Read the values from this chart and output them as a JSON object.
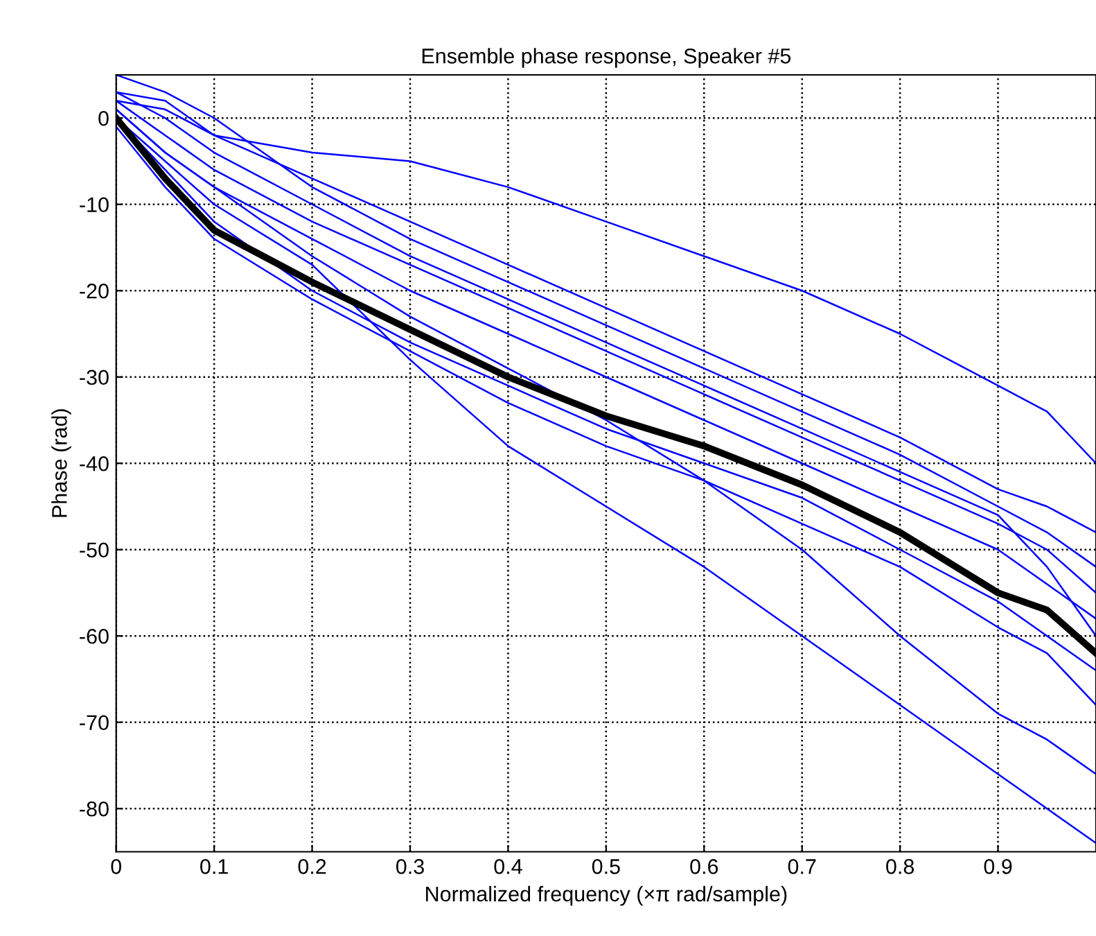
{
  "chart_data": {
    "type": "line",
    "title": "Ensemble phase response, Speaker #5",
    "xlabel": "Normalized frequency (×π rad/sample)",
    "ylabel": "Phase (rad)",
    "x": [
      0,
      0.05,
      0.1,
      0.2,
      0.3,
      0.4,
      0.5,
      0.6,
      0.7,
      0.8,
      0.9,
      0.95,
      1
    ],
    "series": [
      {
        "color": "#0000ff",
        "values": [
          3,
          2,
          -2,
          -7,
          -12,
          -17,
          -22,
          -27,
          -32,
          -37,
          -43,
          -45,
          -48
        ]
      },
      {
        "color": "#0000ff",
        "values": [
          2,
          1,
          -2,
          -4,
          -5,
          -8,
          -12,
          -16,
          -20,
          -25,
          -31,
          -34,
          -40
        ]
      },
      {
        "color": "#0000ff",
        "values": [
          5,
          3,
          0,
          -8,
          -14,
          -19,
          -24,
          -29,
          -34,
          -39,
          -45,
          -48,
          -52
        ]
      },
      {
        "color": "#0000ff",
        "values": [
          2,
          -2,
          -6,
          -12,
          -17,
          -22,
          -27,
          -32,
          -37,
          -42,
          -47,
          -50,
          -55
        ]
      },
      {
        "color": "#0000ff",
        "values": [
          1,
          -4,
          -8,
          -14,
          -20,
          -25,
          -30,
          -35,
          -40,
          -45,
          -50,
          -54,
          -58
        ]
      },
      {
        "color": "#0000ff",
        "values": [
          -1,
          -8,
          -14,
          -21,
          -27,
          -33,
          -38,
          -42,
          -47,
          -52,
          -59,
          -62,
          -68
        ]
      },
      {
        "color": "#0000ff",
        "values": [
          0,
          -6,
          -12,
          -20,
          -26,
          -31,
          -36,
          -40,
          -44,
          -50,
          -56,
          -60,
          -64
        ]
      },
      {
        "color": "#0000ff",
        "values": [
          0,
          -5,
          -10,
          -17,
          -28,
          -38,
          -45,
          -52,
          -60,
          -68,
          -76,
          -80,
          -84
        ]
      },
      {
        "color": "#0000ff",
        "values": [
          1,
          -4,
          -8,
          -16,
          -23,
          -29,
          -35,
          -42,
          -50,
          -60,
          -69,
          -72,
          -76
        ]
      },
      {
        "color": "#0000ff",
        "values": [
          3,
          0,
          -4,
          -10,
          -16,
          -21,
          -26,
          -31,
          -36,
          -41,
          -46,
          -52,
          -60
        ]
      },
      {
        "color": "#000000",
        "values": [
          0,
          -7,
          -13,
          -19,
          -24.5,
          -30,
          -34.5,
          -38,
          -42.5,
          -48,
          -55,
          -57,
          -62
        ]
      }
    ],
    "xlim": [
      0,
      1
    ],
    "ylim": [
      -85,
      5
    ],
    "xticks": [
      0,
      0.1,
      0.2,
      0.3,
      0.4,
      0.5,
      0.6,
      0.7,
      0.8,
      0.9
    ],
    "yticks": [
      -80,
      -70,
      -60,
      -50,
      -40,
      -30,
      -20,
      -10,
      0
    ],
    "grid": true,
    "line_style": "solid",
    "marker": "none",
    "legend": false
  }
}
